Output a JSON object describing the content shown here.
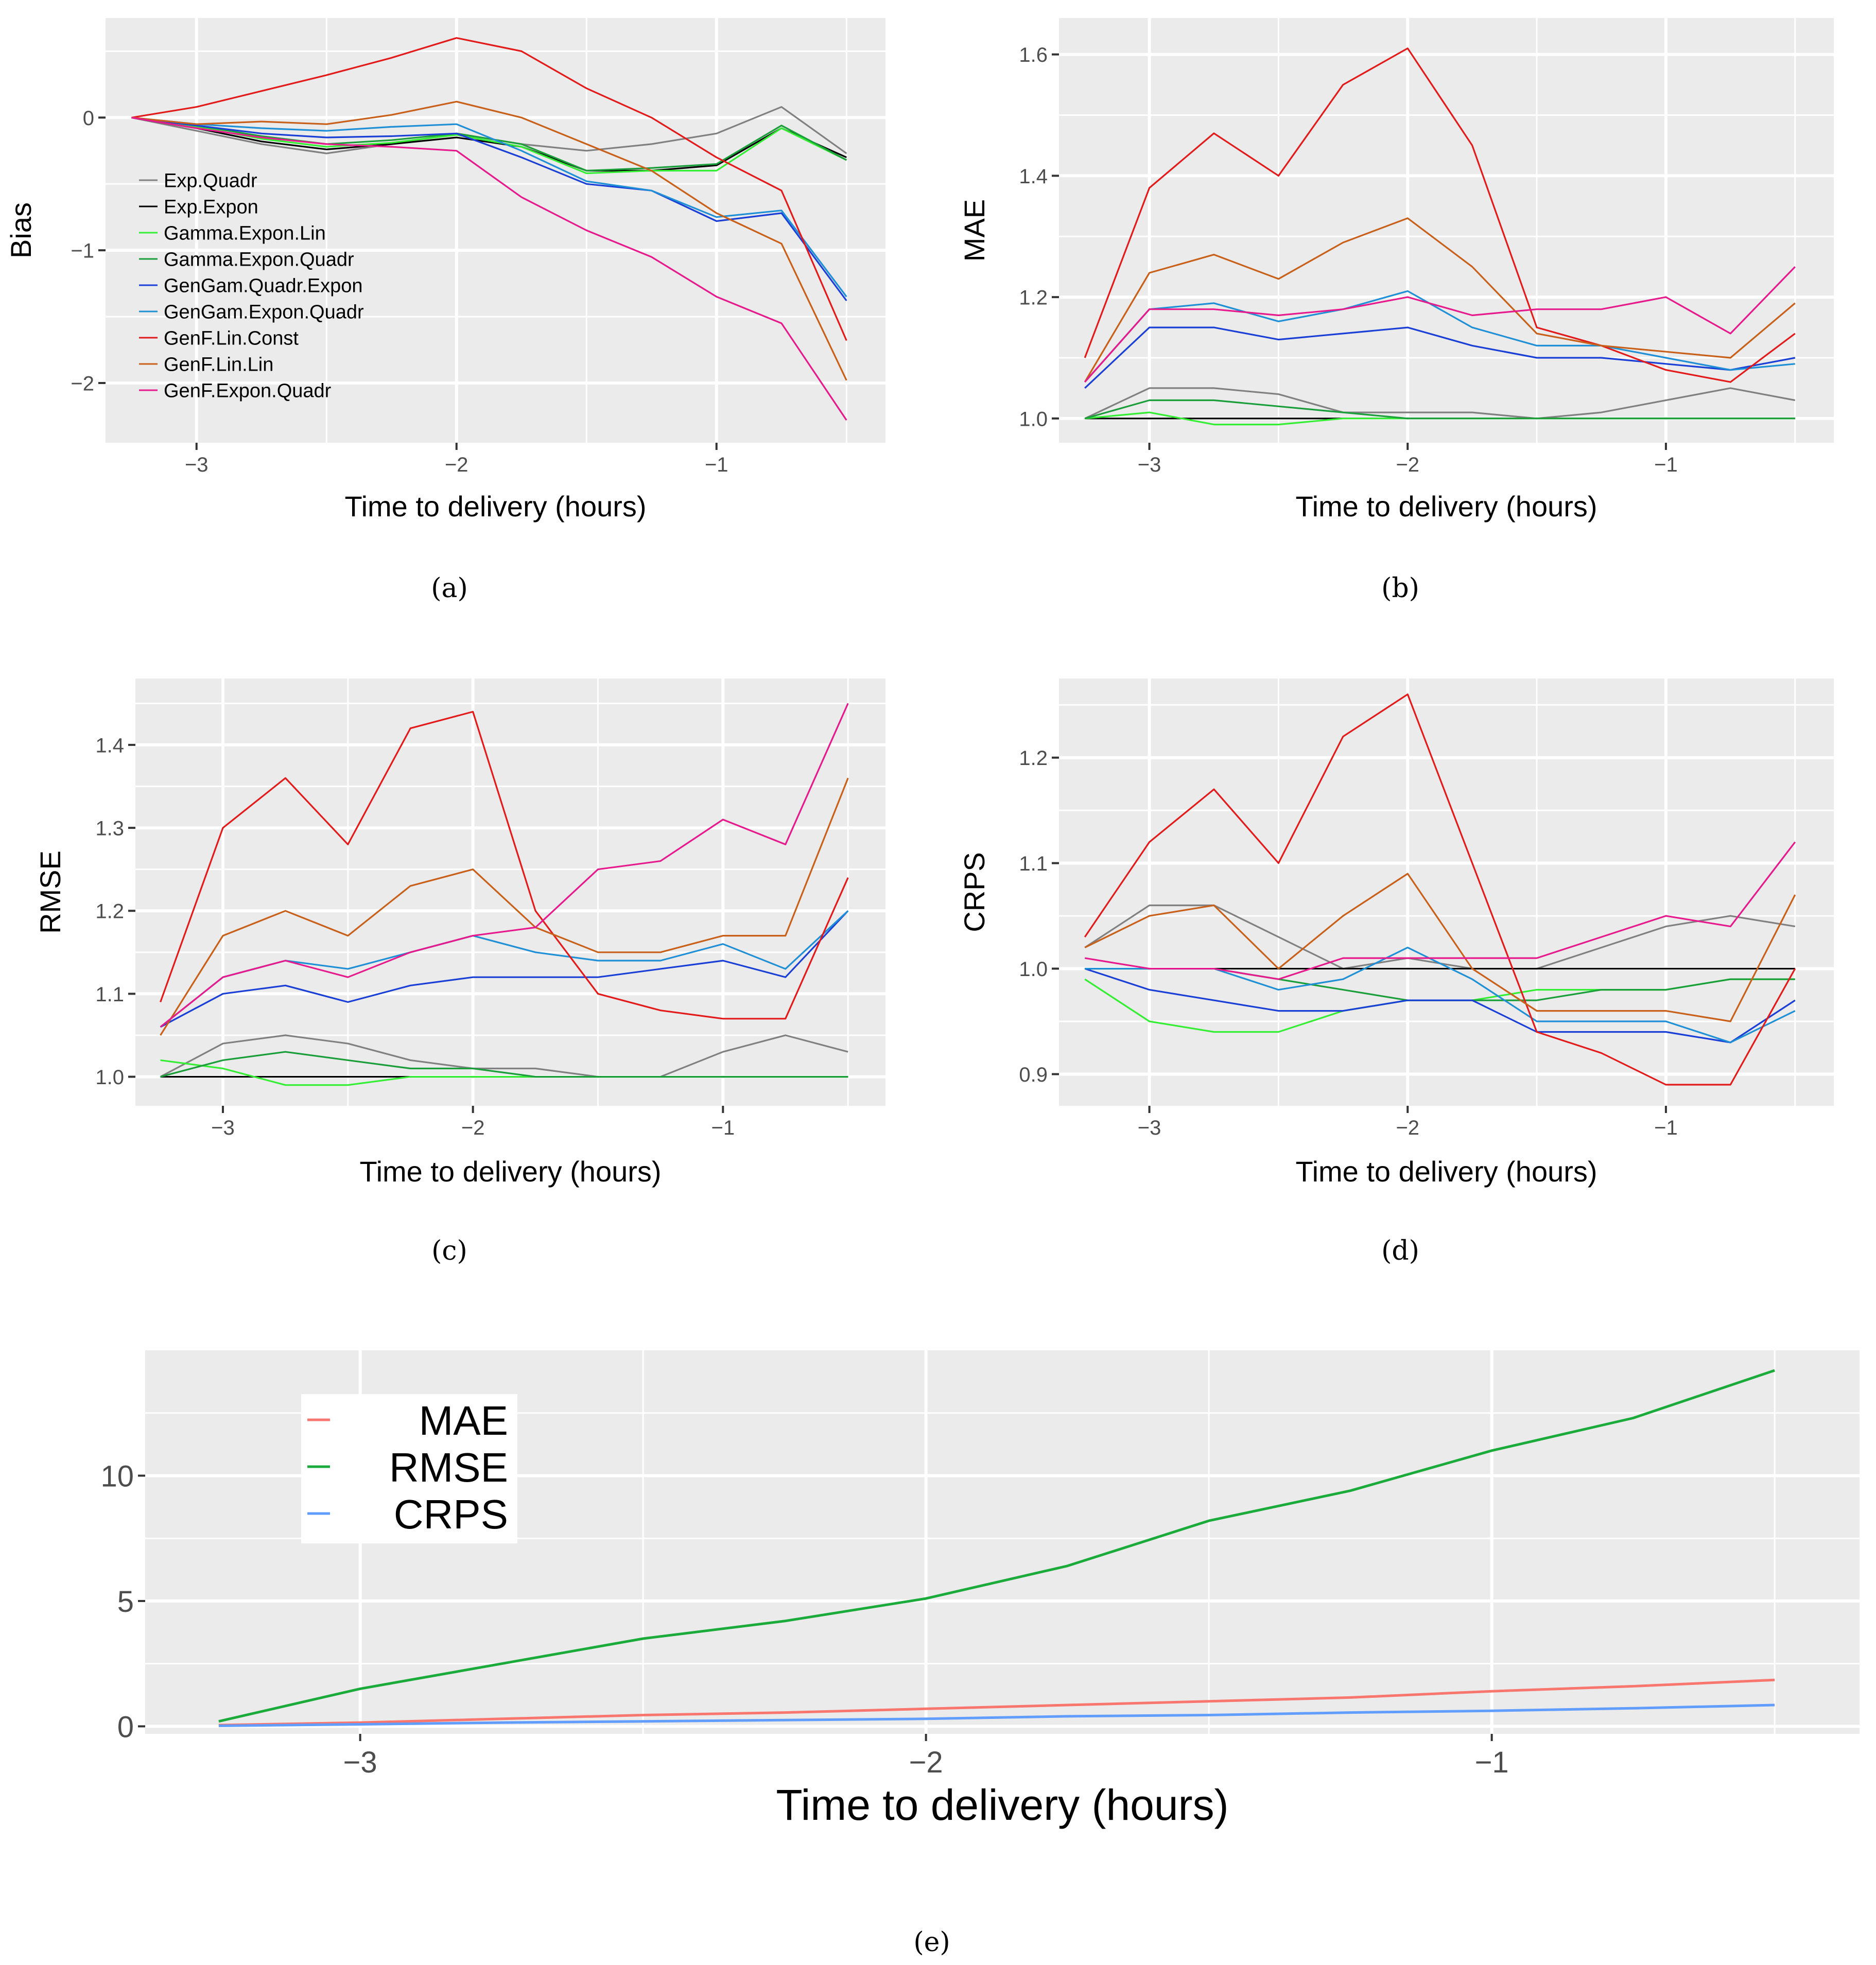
{
  "colors": {
    "Exp.Quadr": "#808080",
    "Exp.Expon": "#000000",
    "Gamma.Expon.Lin": "#33ee33",
    "Gamma.Expon.Quadr": "#1a9e3a",
    "GenGam.Quadr.Expon": "#1a3fd6",
    "GenGam.Expon.Quadr": "#1f8fd6",
    "GenF.Lin.Const": "#e31a1a",
    "GenF.Lin.Lin": "#c8601a",
    "GenF.Expon.Quadr": "#e61a8c",
    "MAE": "#f8766d",
    "RMSE": "#1aab3a",
    "CRPS": "#619cff"
  },
  "chart_data": [
    {
      "type": "line",
      "id": "a",
      "caption": "(a)",
      "xlabel": "Time to delivery (hours)",
      "ylabel": "Bias",
      "xlim": [
        -3.35,
        -0.35
      ],
      "ylim": [
        -2.45,
        0.75
      ],
      "xticks": [
        -3,
        -2,
        -1
      ],
      "xtick_labels": [
        "−3",
        "−2",
        "−1"
      ],
      "yticks": [
        0,
        -1,
        -2
      ],
      "ytick_labels": [
        "0",
        "−1",
        "−2"
      ],
      "legend": [
        "Exp.Quadr",
        "Exp.Expon",
        "Gamma.Expon.Lin",
        "Gamma.Expon.Quadr",
        "GenGam.Quadr.Expon",
        "GenGam.Expon.Quadr",
        "GenF.Lin.Const",
        "GenF.Lin.Lin",
        "GenF.Expon.Quadr"
      ],
      "legend_position": "bottom-left",
      "baseline": null,
      "x": [
        -3.25,
        -3.0,
        -2.75,
        -2.5,
        -2.25,
        -2.0,
        -1.75,
        -1.5,
        -1.25,
        -1.0,
        -0.75,
        -0.5
      ],
      "series": [
        {
          "name": "Exp.Quadr",
          "values": [
            0,
            -0.1,
            -0.2,
            -0.27,
            -0.2,
            -0.12,
            -0.2,
            -0.25,
            -0.2,
            -0.12,
            0.08,
            -0.27
          ]
        },
        {
          "name": "Exp.Expon",
          "values": [
            0,
            -0.08,
            -0.18,
            -0.24,
            -0.2,
            -0.15,
            -0.22,
            -0.4,
            -0.4,
            -0.36,
            -0.08,
            -0.3
          ]
        },
        {
          "name": "Gamma.Expon.Lin",
          "values": [
            0,
            -0.07,
            -0.16,
            -0.22,
            -0.19,
            -0.13,
            -0.22,
            -0.42,
            -0.4,
            -0.4,
            -0.08,
            -0.32
          ]
        },
        {
          "name": "Gamma.Expon.Quadr",
          "values": [
            0,
            -0.06,
            -0.14,
            -0.2,
            -0.17,
            -0.12,
            -0.2,
            -0.4,
            -0.38,
            -0.35,
            -0.06,
            -0.32
          ]
        },
        {
          "name": "GenGam.Quadr.Expon",
          "values": [
            0,
            -0.06,
            -0.12,
            -0.15,
            -0.14,
            -0.12,
            -0.3,
            -0.5,
            -0.55,
            -0.78,
            -0.72,
            -1.38
          ]
        },
        {
          "name": "GenGam.Expon.Quadr",
          "values": [
            0,
            -0.05,
            -0.08,
            -0.1,
            -0.07,
            -0.05,
            -0.25,
            -0.48,
            -0.55,
            -0.75,
            -0.7,
            -1.35
          ]
        },
        {
          "name": "GenF.Lin.Const",
          "values": [
            0,
            0.08,
            0.2,
            0.32,
            0.45,
            0.6,
            0.5,
            0.22,
            0.0,
            -0.3,
            -0.55,
            -1.68
          ]
        },
        {
          "name": "GenF.Lin.Lin",
          "values": [
            0,
            -0.05,
            -0.03,
            -0.05,
            0.02,
            0.12,
            0.0,
            -0.2,
            -0.4,
            -0.72,
            -0.95,
            -1.98
          ]
        },
        {
          "name": "GenF.Expon.Quadr",
          "values": [
            0,
            -0.08,
            -0.15,
            -0.2,
            -0.22,
            -0.25,
            -0.6,
            -0.85,
            -1.05,
            -1.35,
            -1.55,
            -2.28
          ]
        }
      ]
    },
    {
      "type": "line",
      "id": "b",
      "caption": "(b)",
      "xlabel": "Time to delivery (hours)",
      "ylabel": "MAE",
      "xlim": [
        -3.35,
        -0.35
      ],
      "ylim": [
        0.96,
        1.66
      ],
      "xticks": [
        -3,
        -2,
        -1
      ],
      "xtick_labels": [
        "−3",
        "−2",
        "−1"
      ],
      "yticks": [
        1.0,
        1.2,
        1.4,
        1.6
      ],
      "ytick_labels": [
        "1.0",
        "1.2",
        "1.4",
        "1.6"
      ],
      "baseline": 1.0,
      "x": [
        -3.25,
        -3.0,
        -2.75,
        -2.5,
        -2.25,
        -2.0,
        -1.75,
        -1.5,
        -1.25,
        -1.0,
        -0.75,
        -0.5
      ],
      "series": [
        {
          "name": "Exp.Quadr",
          "values": [
            1.0,
            1.05,
            1.05,
            1.04,
            1.01,
            1.01,
            1.01,
            1.0,
            1.01,
            1.03,
            1.05,
            1.03
          ]
        },
        {
          "name": "Exp.Expon",
          "values": [
            1.0,
            1.0,
            1.0,
            1.0,
            1.0,
            1.0,
            1.0,
            1.0,
            1.0,
            1.0,
            1.0,
            1.0
          ]
        },
        {
          "name": "Gamma.Expon.Lin",
          "values": [
            1.0,
            1.01,
            0.99,
            0.99,
            1.0,
            1.0,
            1.0,
            1.0,
            1.0,
            1.0,
            1.0,
            1.0
          ]
        },
        {
          "name": "Gamma.Expon.Quadr",
          "values": [
            1.0,
            1.03,
            1.03,
            1.02,
            1.01,
            1.0,
            1.0,
            1.0,
            1.0,
            1.0,
            1.0,
            1.0
          ]
        },
        {
          "name": "GenGam.Quadr.Expon",
          "values": [
            1.05,
            1.15,
            1.15,
            1.13,
            1.14,
            1.15,
            1.12,
            1.1,
            1.1,
            1.09,
            1.08,
            1.1
          ]
        },
        {
          "name": "GenGam.Expon.Quadr",
          "values": [
            1.06,
            1.18,
            1.19,
            1.16,
            1.18,
            1.21,
            1.15,
            1.12,
            1.12,
            1.1,
            1.08,
            1.09
          ]
        },
        {
          "name": "GenF.Lin.Const",
          "values": [
            1.1,
            1.38,
            1.47,
            1.4,
            1.55,
            1.61,
            1.45,
            1.15,
            1.12,
            1.08,
            1.06,
            1.14
          ]
        },
        {
          "name": "GenF.Lin.Lin",
          "values": [
            1.06,
            1.24,
            1.27,
            1.23,
            1.29,
            1.33,
            1.25,
            1.14,
            1.12,
            1.11,
            1.1,
            1.19
          ]
        },
        {
          "name": "GenF.Expon.Quadr",
          "values": [
            1.06,
            1.18,
            1.18,
            1.17,
            1.18,
            1.2,
            1.17,
            1.18,
            1.18,
            1.2,
            1.14,
            1.25
          ]
        }
      ]
    },
    {
      "type": "line",
      "id": "c",
      "caption": "(c)",
      "xlabel": "Time to delivery (hours)",
      "ylabel": "RMSE",
      "xlim": [
        -3.35,
        -0.35
      ],
      "ylim": [
        0.965,
        1.48
      ],
      "xticks": [
        -3,
        -2,
        -1
      ],
      "xtick_labels": [
        "−3",
        "−2",
        "−1"
      ],
      "yticks": [
        1.0,
        1.1,
        1.2,
        1.3,
        1.4
      ],
      "ytick_labels": [
        "1.0",
        "1.1",
        "1.2",
        "1.3",
        "1.4"
      ],
      "baseline": 1.0,
      "x": [
        -3.25,
        -3.0,
        -2.75,
        -2.5,
        -2.25,
        -2.0,
        -1.75,
        -1.5,
        -1.25,
        -1.0,
        -0.75,
        -0.5
      ],
      "series": [
        {
          "name": "Exp.Quadr",
          "values": [
            1.0,
            1.04,
            1.05,
            1.04,
            1.02,
            1.01,
            1.01,
            1.0,
            1.0,
            1.03,
            1.05,
            1.03
          ]
        },
        {
          "name": "Exp.Expon",
          "values": [
            1.0,
            1.0,
            1.0,
            1.0,
            1.0,
            1.0,
            1.0,
            1.0,
            1.0,
            1.0,
            1.0,
            1.0
          ]
        },
        {
          "name": "Gamma.Expon.Lin",
          "values": [
            1.02,
            1.01,
            0.99,
            0.99,
            1.0,
            1.0,
            1.0,
            1.0,
            1.0,
            1.0,
            1.0,
            1.0
          ]
        },
        {
          "name": "Gamma.Expon.Quadr",
          "values": [
            1.0,
            1.02,
            1.03,
            1.02,
            1.01,
            1.01,
            1.0,
            1.0,
            1.0,
            1.0,
            1.0,
            1.0
          ]
        },
        {
          "name": "GenGam.Quadr.Expon",
          "values": [
            1.06,
            1.1,
            1.11,
            1.09,
            1.11,
            1.12,
            1.12,
            1.12,
            1.13,
            1.14,
            1.12,
            1.2
          ]
        },
        {
          "name": "GenGam.Expon.Quadr",
          "values": [
            1.06,
            1.12,
            1.14,
            1.13,
            1.15,
            1.17,
            1.15,
            1.14,
            1.14,
            1.16,
            1.13,
            1.2
          ]
        },
        {
          "name": "GenF.Lin.Const",
          "values": [
            1.09,
            1.3,
            1.36,
            1.28,
            1.42,
            1.44,
            1.2,
            1.1,
            1.08,
            1.07,
            1.07,
            1.24
          ]
        },
        {
          "name": "GenF.Lin.Lin",
          "values": [
            1.05,
            1.17,
            1.2,
            1.17,
            1.23,
            1.25,
            1.18,
            1.15,
            1.15,
            1.17,
            1.17,
            1.36
          ]
        },
        {
          "name": "GenF.Expon.Quadr",
          "values": [
            1.06,
            1.12,
            1.14,
            1.12,
            1.15,
            1.17,
            1.18,
            1.25,
            1.26,
            1.31,
            1.28,
            1.45
          ]
        }
      ]
    },
    {
      "type": "line",
      "id": "d",
      "caption": "(d)",
      "xlabel": "Time to delivery (hours)",
      "ylabel": "CRPS",
      "xlim": [
        -3.35,
        -0.35
      ],
      "ylim": [
        0.87,
        1.275
      ],
      "xticks": [
        -3,
        -2,
        -1
      ],
      "xtick_labels": [
        "−3",
        "−2",
        "−1"
      ],
      "yticks": [
        0.9,
        1.0,
        1.1,
        1.2
      ],
      "ytick_labels": [
        "0.9",
        "1.0",
        "1.1",
        "1.2"
      ],
      "baseline": 1.0,
      "x": [
        -3.25,
        -3.0,
        -2.75,
        -2.5,
        -2.25,
        -2.0,
        -1.75,
        -1.5,
        -1.25,
        -1.0,
        -0.75,
        -0.5
      ],
      "series": [
        {
          "name": "Exp.Quadr",
          "values": [
            1.02,
            1.06,
            1.06,
            1.03,
            1.0,
            1.01,
            1.0,
            1.0,
            1.02,
            1.04,
            1.05,
            1.04
          ]
        },
        {
          "name": "Exp.Expon",
          "values": [
            1.0,
            1.0,
            1.0,
            1.0,
            1.0,
            1.0,
            1.0,
            1.0,
            1.0,
            1.0,
            1.0,
            1.0
          ]
        },
        {
          "name": "Gamma.Expon.Lin",
          "values": [
            0.99,
            0.95,
            0.94,
            0.94,
            0.96,
            0.97,
            0.97,
            0.98,
            0.98,
            0.98,
            0.99,
            0.99
          ]
        },
        {
          "name": "Gamma.Expon.Quadr",
          "values": [
            1.0,
            1.0,
            1.0,
            0.99,
            0.98,
            0.97,
            0.97,
            0.97,
            0.98,
            0.98,
            0.99,
            0.99
          ]
        },
        {
          "name": "GenGam.Quadr.Expon",
          "values": [
            1.0,
            0.98,
            0.97,
            0.96,
            0.96,
            0.97,
            0.97,
            0.94,
            0.94,
            0.94,
            0.93,
            0.97
          ]
        },
        {
          "name": "GenGam.Expon.Quadr",
          "values": [
            1.0,
            1.0,
            1.0,
            0.98,
            0.99,
            1.02,
            0.99,
            0.95,
            0.95,
            0.95,
            0.93,
            0.96
          ]
        },
        {
          "name": "GenF.Lin.Const",
          "values": [
            1.03,
            1.12,
            1.17,
            1.1,
            1.22,
            1.26,
            1.1,
            0.94,
            0.92,
            0.89,
            0.89,
            1.0
          ]
        },
        {
          "name": "GenF.Lin.Lin",
          "values": [
            1.02,
            1.05,
            1.06,
            1.0,
            1.05,
            1.09,
            1.0,
            0.96,
            0.96,
            0.96,
            0.95,
            1.07
          ]
        },
        {
          "name": "GenF.Expon.Quadr",
          "values": [
            1.01,
            1.0,
            1.0,
            0.99,
            1.01,
            1.01,
            1.01,
            1.01,
            1.03,
            1.05,
            1.04,
            1.12
          ]
        }
      ]
    },
    {
      "type": "line",
      "id": "e",
      "caption": "(e)",
      "xlabel": "Time to delivery (hours)",
      "ylabel": "",
      "xlim": [
        -3.38,
        -0.35
      ],
      "ylim": [
        -0.3,
        15.0
      ],
      "xticks": [
        -3,
        -2,
        -1
      ],
      "xtick_labels": [
        "−3",
        "−2",
        "−1"
      ],
      "yticks": [
        0,
        5,
        10
      ],
      "ytick_labels": [
        "0",
        "5",
        "10"
      ],
      "legend": [
        "MAE",
        "RMSE",
        "CRPS"
      ],
      "legend_position": "top-left",
      "baseline": null,
      "x": [
        -3.25,
        -3.0,
        -2.75,
        -2.5,
        -2.25,
        -2.0,
        -1.75,
        -1.5,
        -1.25,
        -1.0,
        -0.75,
        -0.5
      ],
      "series": [
        {
          "name": "MAE",
          "values": [
            0.05,
            0.15,
            0.3,
            0.45,
            0.55,
            0.7,
            0.85,
            1.0,
            1.15,
            1.4,
            1.6,
            1.85
          ]
        },
        {
          "name": "RMSE",
          "values": [
            0.2,
            1.5,
            2.5,
            3.5,
            4.2,
            5.1,
            6.4,
            8.2,
            9.4,
            11.0,
            12.3,
            14.2
          ]
        },
        {
          "name": "CRPS",
          "values": [
            0.02,
            0.08,
            0.15,
            0.2,
            0.25,
            0.3,
            0.4,
            0.45,
            0.55,
            0.62,
            0.72,
            0.85
          ]
        }
      ]
    }
  ]
}
